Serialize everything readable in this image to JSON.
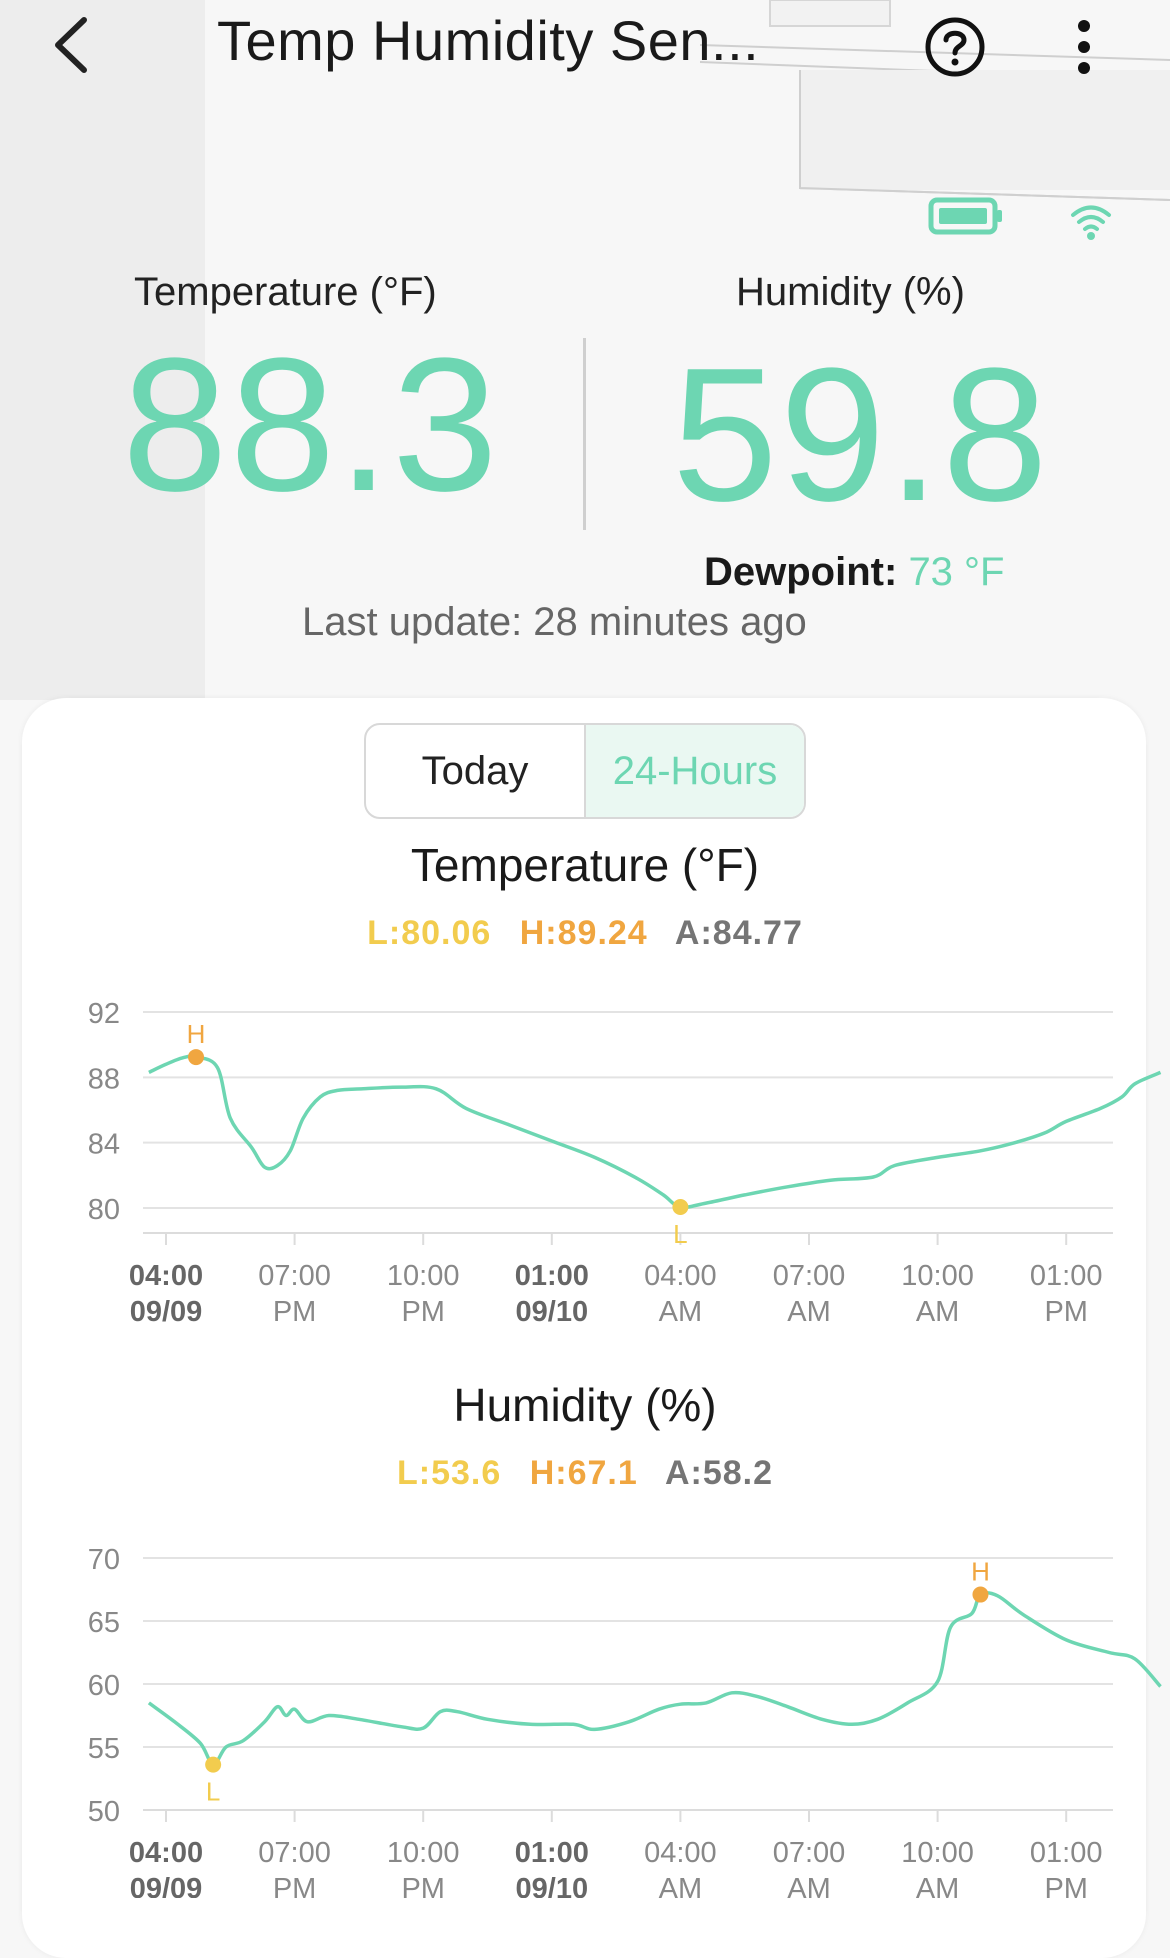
{
  "header": {
    "title": "Temp Humidity Sen...",
    "back_icon": "chevron-left-icon",
    "help_icon": "question-circle-icon",
    "more_icon": "more-vertical-icon"
  },
  "status": {
    "battery_icon": "battery-icon",
    "wifi_icon": "wifi-icon"
  },
  "readings": {
    "temperature_label": "Temperature (°F)",
    "temperature_value": "88.3",
    "humidity_label": "Humidity (%)",
    "humidity_value": "59.8",
    "dewpoint_label": "Dewpoint:",
    "dewpoint_value": "73 °F",
    "last_update": "Last update: 28 minutes ago"
  },
  "range_tabs": {
    "today": "Today",
    "hours24": "24-Hours",
    "selected": "24-Hours"
  },
  "colors": {
    "accent": "#6dd6b2",
    "low": "#f2cc4e",
    "high": "#f0a640",
    "average": "#757575"
  },
  "chart_data": [
    {
      "type": "line",
      "title": "Temperature (°F)",
      "stats": {
        "low": "L:80.06",
        "high": "H:89.24",
        "avg": "A:84.77"
      },
      "ylim": [
        80,
        92
      ],
      "yticks": [
        "92",
        "88",
        "84",
        "80"
      ],
      "x_ticks": [
        {
          "top": "04:00",
          "bottom": "09/09",
          "bold": true
        },
        {
          "top": "07:00",
          "bottom": "PM",
          "bold": false
        },
        {
          "top": "10:00",
          "bottom": "PM",
          "bold": false
        },
        {
          "top": "01:00",
          "bottom": "09/10",
          "bold": true
        },
        {
          "top": "04:00",
          "bottom": "AM",
          "bold": false
        },
        {
          "top": "07:00",
          "bottom": "AM",
          "bold": false
        },
        {
          "top": "10:00",
          "bottom": "AM",
          "bold": false
        },
        {
          "top": "01:00",
          "bottom": "PM",
          "bold": false
        }
      ],
      "high_marker": {
        "label": "H",
        "hours": 0.7,
        "value": 89.24
      },
      "low_marker": {
        "label": "L",
        "hours": 12.0,
        "value": 80.06
      },
      "series": [
        {
          "points": [
            [
              -0.4,
              88.3
            ],
            [
              0.0,
              88.8
            ],
            [
              0.4,
              89.2
            ],
            [
              0.7,
              89.24
            ],
            [
              1.2,
              88.6
            ],
            [
              1.5,
              85.5
            ],
            [
              2.0,
              83.7
            ],
            [
              2.3,
              82.5
            ],
            [
              2.6,
              82.6
            ],
            [
              2.9,
              83.5
            ],
            [
              3.2,
              85.5
            ],
            [
              3.6,
              86.8
            ],
            [
              4.0,
              87.2
            ],
            [
              4.6,
              87.3
            ],
            [
              5.5,
              87.4
            ],
            [
              6.3,
              87.3
            ],
            [
              7.0,
              86.1
            ],
            [
              8.0,
              85.1
            ],
            [
              9.0,
              84.1
            ],
            [
              10.0,
              83.1
            ],
            [
              11.0,
              81.8
            ],
            [
              11.6,
              80.8
            ],
            [
              12.0,
              80.06
            ],
            [
              12.6,
              80.3
            ],
            [
              13.5,
              80.8
            ],
            [
              14.5,
              81.3
            ],
            [
              15.5,
              81.7
            ],
            [
              16.5,
              81.9
            ],
            [
              17.0,
              82.6
            ],
            [
              18.0,
              83.1
            ],
            [
              19.0,
              83.5
            ],
            [
              19.8,
              84.0
            ],
            [
              20.5,
              84.6
            ],
            [
              21.0,
              85.3
            ],
            [
              21.8,
              86.1
            ],
            [
              22.3,
              86.8
            ],
            [
              22.6,
              87.6
            ],
            [
              23.2,
              88.3
            ]
          ]
        }
      ]
    },
    {
      "type": "line",
      "title": "Humidity (%)",
      "stats": {
        "low": "L:53.6",
        "high": "H:67.1",
        "avg": "A:58.2"
      },
      "ylim": [
        50,
        70
      ],
      "yticks": [
        "70",
        "65",
        "60",
        "55",
        "50"
      ],
      "x_ticks": [
        {
          "top": "04:00",
          "bottom": "09/09",
          "bold": true
        },
        {
          "top": "07:00",
          "bottom": "PM",
          "bold": false
        },
        {
          "top": "10:00",
          "bottom": "PM",
          "bold": false
        },
        {
          "top": "01:00",
          "bottom": "09/10",
          "bold": true
        },
        {
          "top": "04:00",
          "bottom": "AM",
          "bold": false
        },
        {
          "top": "07:00",
          "bottom": "AM",
          "bold": false
        },
        {
          "top": "10:00",
          "bottom": "AM",
          "bold": false
        },
        {
          "top": "01:00",
          "bottom": "PM",
          "bold": false
        }
      ],
      "high_marker": {
        "label": "H",
        "hours": 19.0,
        "value": 67.1
      },
      "low_marker": {
        "label": "L",
        "hours": 1.1,
        "value": 53.6
      },
      "series": [
        {
          "points": [
            [
              -0.4,
              58.5
            ],
            [
              0.2,
              57.0
            ],
            [
              0.8,
              55.3
            ],
            [
              1.1,
              53.6
            ],
            [
              1.4,
              55.0
            ],
            [
              1.8,
              55.5
            ],
            [
              2.3,
              57.0
            ],
            [
              2.6,
              58.2
            ],
            [
              2.8,
              57.5
            ],
            [
              3.0,
              58.0
            ],
            [
              3.3,
              57.0
            ],
            [
              3.8,
              57.5
            ],
            [
              4.5,
              57.2
            ],
            [
              5.5,
              56.6
            ],
            [
              6.0,
              56.5
            ],
            [
              6.4,
              57.8
            ],
            [
              6.8,
              57.8
            ],
            [
              7.5,
              57.2
            ],
            [
              8.5,
              56.8
            ],
            [
              9.5,
              56.8
            ],
            [
              10.0,
              56.4
            ],
            [
              10.8,
              57.0
            ],
            [
              11.5,
              58.0
            ],
            [
              12.0,
              58.4
            ],
            [
              12.6,
              58.5
            ],
            [
              13.2,
              59.3
            ],
            [
              13.8,
              59.0
            ],
            [
              14.5,
              58.2
            ],
            [
              15.3,
              57.2
            ],
            [
              16.0,
              56.8
            ],
            [
              16.6,
              57.2
            ],
            [
              17.3,
              58.5
            ],
            [
              18.0,
              60.2
            ],
            [
              18.3,
              64.5
            ],
            [
              18.8,
              65.6
            ],
            [
              19.0,
              67.1
            ],
            [
              19.4,
              67.0
            ],
            [
              20.0,
              65.5
            ],
            [
              21.0,
              63.5
            ],
            [
              22.0,
              62.5
            ],
            [
              22.6,
              62.0
            ],
            [
              23.2,
              59.8
            ]
          ]
        }
      ]
    }
  ]
}
